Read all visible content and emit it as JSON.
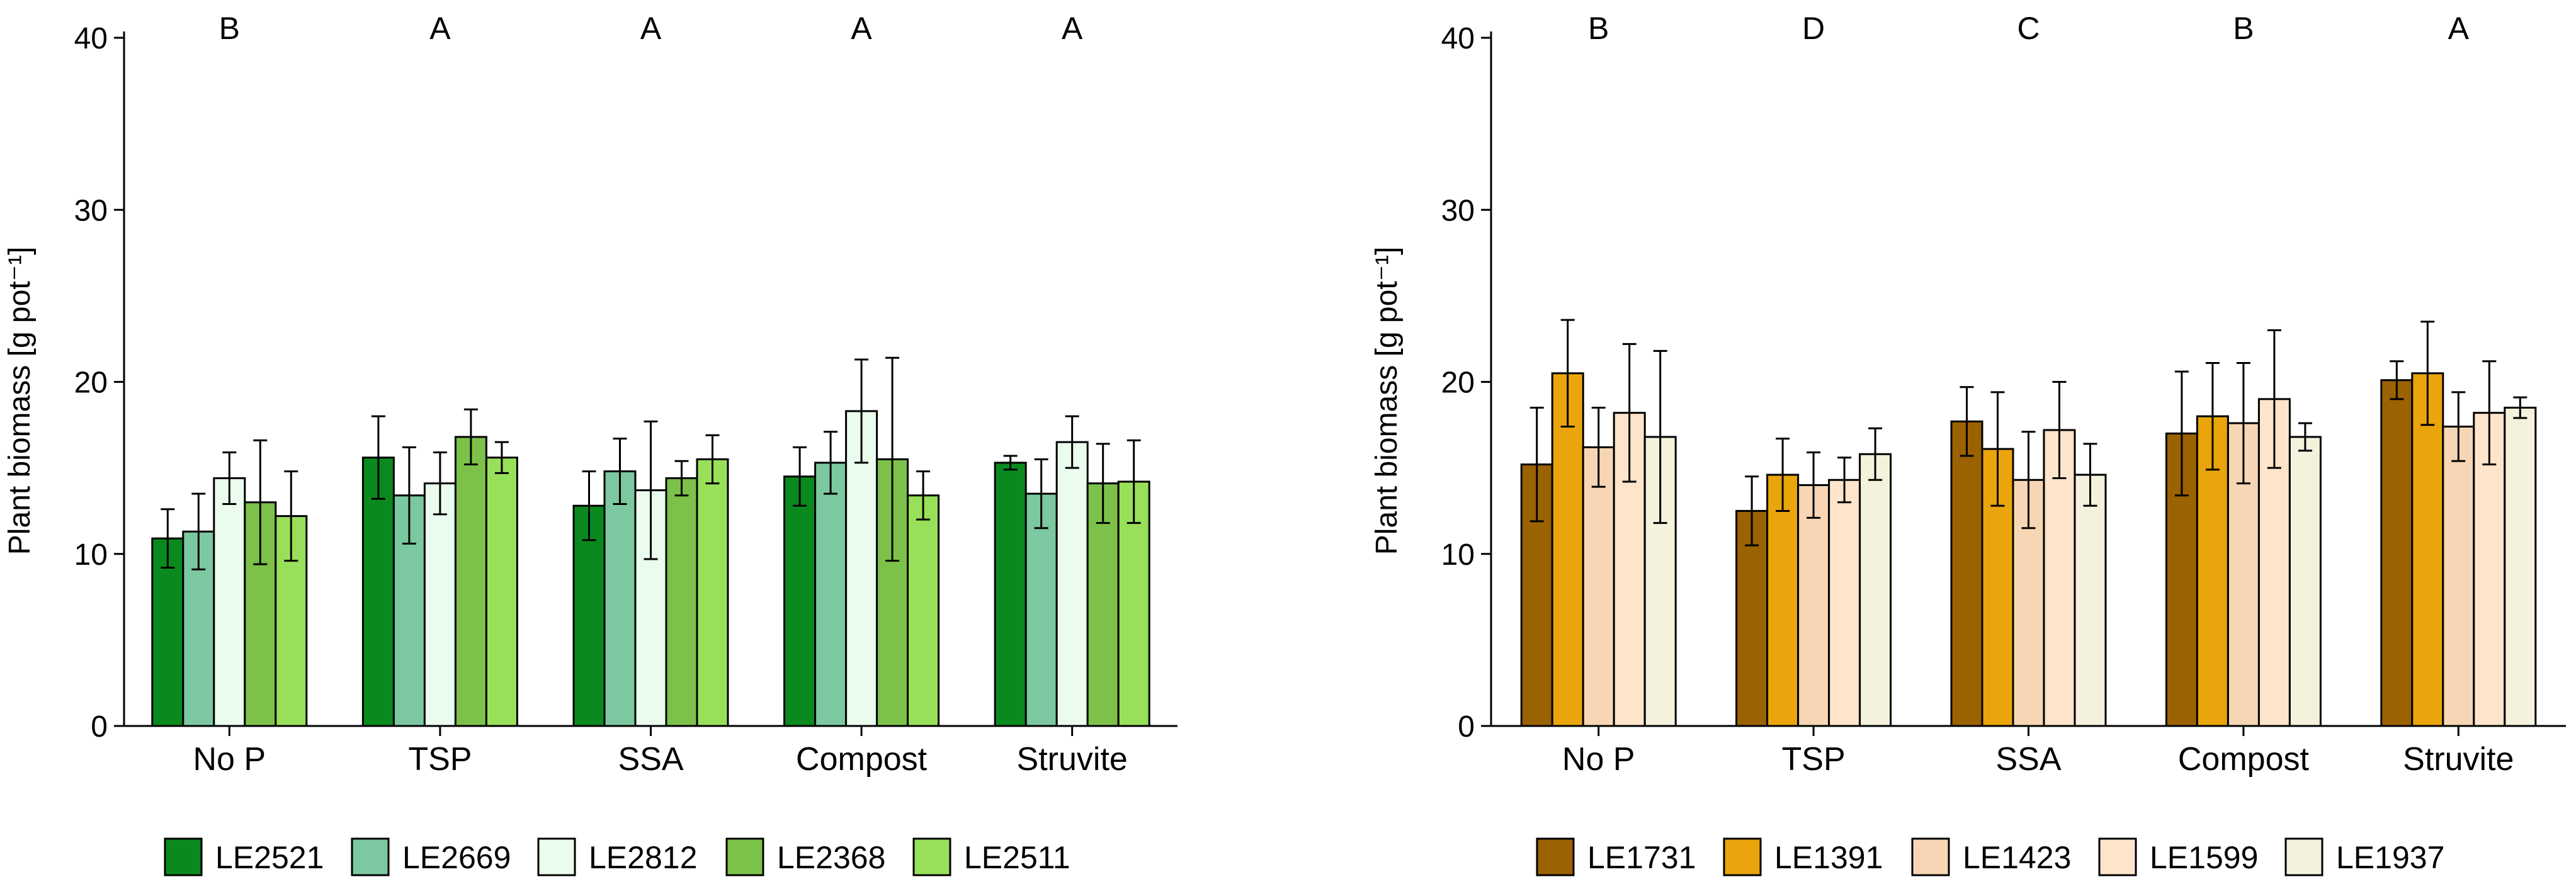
{
  "chart_data": [
    {
      "type": "bar",
      "ylabel": "Plant biomass [g pot⁻¹]",
      "ylim": [
        0,
        40
      ],
      "yticks": [
        0,
        10,
        20,
        30,
        40
      ],
      "grid": false,
      "legend": "bottom",
      "categories": [
        "No P",
        "TSP",
        "SSA",
        "Compost",
        "Struvite"
      ],
      "letters": [
        "B",
        "A",
        "A",
        "A",
        "A"
      ],
      "series": [
        {
          "name": "LE2521",
          "color": "#0a8a1e",
          "values": [
            10.9,
            15.6,
            12.8,
            14.5,
            15.3
          ],
          "errors": [
            1.7,
            2.4,
            2.0,
            1.7,
            0.4
          ]
        },
        {
          "name": "LE2669",
          "color": "#7cc8a0",
          "values": [
            11.3,
            13.4,
            14.8,
            15.3,
            13.5
          ],
          "errors": [
            2.2,
            2.8,
            1.9,
            1.8,
            2.0
          ]
        },
        {
          "name": "LE2812",
          "color": "#eafcee",
          "values": [
            14.4,
            14.1,
            13.7,
            18.3,
            16.5
          ],
          "errors": [
            1.5,
            1.8,
            4.0,
            3.0,
            1.5
          ]
        },
        {
          "name": "LE2368",
          "color": "#7cc24a",
          "values": [
            13.0,
            16.8,
            14.4,
            15.5,
            14.1
          ],
          "errors": [
            3.6,
            1.6,
            1.0,
            5.9,
            2.3
          ]
        },
        {
          "name": "LE2511",
          "color": "#98e05a",
          "values": [
            12.2,
            15.6,
            15.5,
            13.4,
            14.2
          ],
          "errors": [
            2.6,
            0.9,
            1.4,
            1.4,
            2.4
          ]
        }
      ]
    },
    {
      "type": "bar",
      "ylabel": "Plant biomass [g pot⁻¹]",
      "ylim": [
        0,
        40
      ],
      "yticks": [
        0,
        10,
        20,
        30,
        40
      ],
      "grid": false,
      "legend": "bottom",
      "categories": [
        "No P",
        "TSP",
        "SSA",
        "Compost",
        "Struvite"
      ],
      "letters": [
        "B",
        "D",
        "C",
        "B",
        "A"
      ],
      "series": [
        {
          "name": "LE1731",
          "color": "#9a6200",
          "values": [
            15.2,
            12.5,
            17.7,
            17.0,
            20.1
          ],
          "errors": [
            3.3,
            2.0,
            2.0,
            3.6,
            1.1
          ]
        },
        {
          "name": "LE1391",
          "color": "#eaa50c",
          "values": [
            20.5,
            14.6,
            16.1,
            18.0,
            20.5
          ],
          "errors": [
            3.1,
            2.1,
            3.3,
            3.1,
            3.0
          ]
        },
        {
          "name": "LE1423",
          "color": "#f6d6b4",
          "values": [
            16.2,
            14.0,
            14.3,
            17.6,
            17.4
          ],
          "errors": [
            2.3,
            1.9,
            2.8,
            3.5,
            2.0
          ]
        },
        {
          "name": "LE1599",
          "color": "#fde4ca",
          "values": [
            18.2,
            14.3,
            17.2,
            19.0,
            18.2
          ],
          "errors": [
            4.0,
            1.3,
            2.8,
            4.0,
            3.0
          ]
        },
        {
          "name": "LE1937",
          "color": "#f4f1dc",
          "values": [
            16.8,
            15.8,
            14.6,
            16.8,
            18.5
          ],
          "errors": [
            5.0,
            1.5,
            1.8,
            0.8,
            0.6
          ]
        }
      ]
    }
  ]
}
